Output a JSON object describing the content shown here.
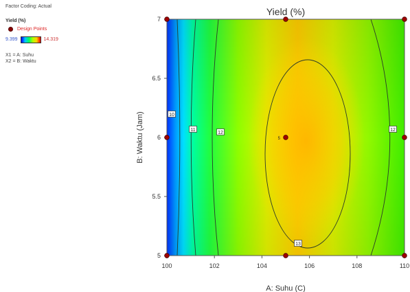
{
  "info": {
    "factor_coding": "Factor Coding: Actual",
    "response_label": "Yield (%)",
    "design_points_label": "Design Points",
    "scale_min": "9.399",
    "scale_max": "14.319",
    "x1_def": "X1 = A: Suhu",
    "x2_def": "X2 = B: Waktu"
  },
  "chart_data": {
    "type": "contour",
    "title": "Yield  (%)",
    "xlabel": "A: Suhu  (C)",
    "ylabel": "B: Waktu  (Jam)",
    "xlim": [
      100,
      110
    ],
    "ylim": [
      5,
      7
    ],
    "x_ticks": [
      "100",
      "102",
      "104",
      "106",
      "108",
      "110"
    ],
    "y_ticks": [
      "5",
      "5.5",
      "6",
      "6.5",
      "7"
    ],
    "response_range": [
      9.399,
      14.319
    ],
    "contour_levels": [
      "10",
      "11",
      "12",
      "13"
    ],
    "center_point_label": "5",
    "design_points": [
      [
        100,
        5
      ],
      [
        100,
        6
      ],
      [
        100,
        7
      ],
      [
        105,
        5
      ],
      [
        105,
        6
      ],
      [
        105,
        7
      ],
      [
        110,
        5
      ],
      [
        110,
        6
      ],
      [
        110,
        7
      ]
    ]
  }
}
